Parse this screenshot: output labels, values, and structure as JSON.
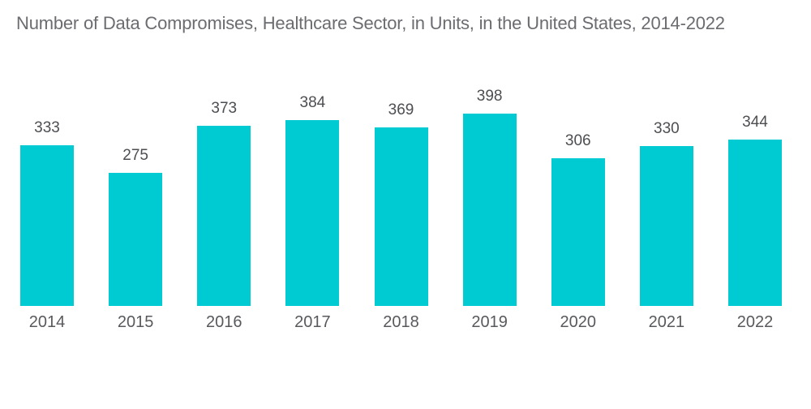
{
  "chart_data": {
    "type": "bar",
    "title": "Number of Data Compromises, Healthcare Sector, in Units, in the United States, 2014-2022",
    "categories": [
      "2014",
      "2015",
      "2016",
      "2017",
      "2018",
      "2019",
      "2020",
      "2021",
      "2022"
    ],
    "values": [
      333,
      275,
      373,
      384,
      369,
      398,
      306,
      330,
      344
    ],
    "xlabel": "",
    "ylabel": "",
    "ylim": [
      0,
      420
    ],
    "grid": false,
    "legend_position": "none",
    "axes_visible": false,
    "value_labels_shown": true,
    "bar_color": "#00cbd3",
    "title_color": "#6b6c70",
    "value_label_color": "#4c4e51",
    "tick_label_color": "#58595c",
    "background_color": "#ffffff"
  }
}
